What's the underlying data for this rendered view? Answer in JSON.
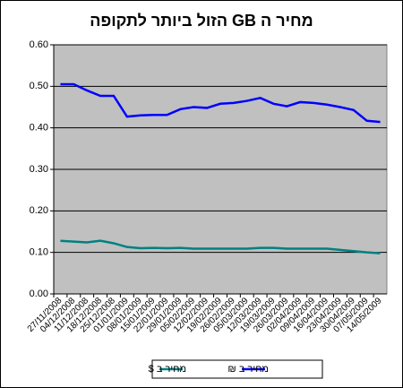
{
  "chart_data": {
    "type": "line",
    "title": "מחיר ה GB הזול ביותר לתקופה",
    "categories": [
      "27/11/2008",
      "04/12/2008",
      "11/12/2008",
      "18/12/2008",
      "25/12/2008",
      "01/01/2009",
      "08/01/2009",
      "15/01/2009",
      "22/01/2009",
      "29/01/2009",
      "05/02/2009",
      "12/02/2009",
      "19/02/2009",
      "26/02/2009",
      "05/03/2009",
      "12/03/2009",
      "19/03/2009",
      "26/03/2009",
      "02/04/2009",
      "09/04/2009",
      "16/04/2009",
      "23/04/2009",
      "30/04/2009",
      "07/05/2009",
      "14/05/2009"
    ],
    "series": [
      {
        "name": "מחיר ב $",
        "color": "#008080",
        "values": [
          0.128,
          0.126,
          0.124,
          0.128,
          0.122,
          0.113,
          0.11,
          0.111,
          0.11,
          0.111,
          0.109,
          0.109,
          0.109,
          0.109,
          0.109,
          0.111,
          0.111,
          0.109,
          0.109,
          0.109,
          0.109,
          0.106,
          0.103,
          0.1,
          0.098
        ]
      },
      {
        "name": "מחיר ב ₪",
        "color": "#0000ff",
        "values": [
          0.505,
          0.505,
          0.49,
          0.477,
          0.477,
          0.427,
          0.43,
          0.431,
          0.431,
          0.445,
          0.45,
          0.448,
          0.458,
          0.46,
          0.465,
          0.472,
          0.458,
          0.452,
          0.462,
          0.46,
          0.456,
          0.45,
          0.443,
          0.417,
          0.414
        ]
      }
    ],
    "ylim": [
      0,
      0.6
    ],
    "yticks": [
      {
        "value": 0,
        "label": "0.00"
      },
      {
        "value": 0.1,
        "label": "0.10"
      },
      {
        "value": 0.2,
        "label": "0.20"
      },
      {
        "value": 0.3,
        "label": "0.30"
      },
      {
        "value": 0.4,
        "label": "0.40"
      },
      {
        "value": 0.5,
        "label": "0.50"
      },
      {
        "value": 0.6,
        "label": "0.60"
      }
    ],
    "grid": true,
    "legend": "bottom"
  }
}
